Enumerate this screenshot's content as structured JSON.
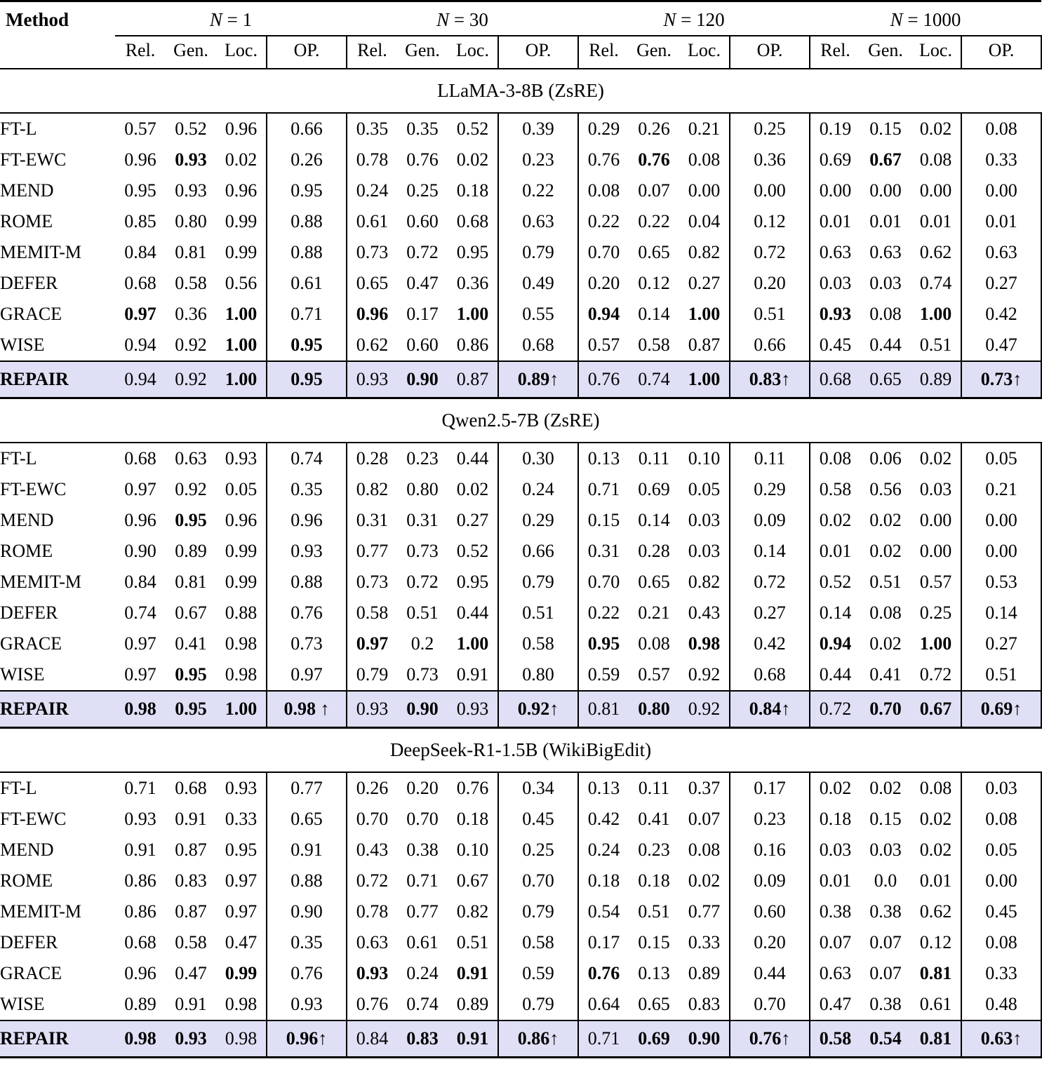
{
  "colors": {
    "background": "#ffffff",
    "text": "#000000",
    "rule": "#000000",
    "repair_row_bg": "#dfdff5"
  },
  "table": {
    "method_header": "Method",
    "groups": [
      {
        "symbol": "N",
        "eq": "=",
        "value": "1"
      },
      {
        "symbol": "N",
        "eq": "=",
        "value": "30"
      },
      {
        "symbol": "N",
        "eq": "=",
        "value": "120"
      },
      {
        "symbol": "N",
        "eq": "=",
        "value": "1000"
      }
    ],
    "metric_headers": [
      "Rel.",
      "Gen.",
      "Loc.",
      "OP."
    ],
    "sections": [
      {
        "title": "LLaMA-3-8B (ZsRE)",
        "rows": [
          {
            "method": "FT-L",
            "values": [
              "0.57",
              "0.52",
              "0.96",
              "0.66",
              "0.35",
              "0.35",
              "0.52",
              "0.39",
              "0.29",
              "0.26",
              "0.21",
              "0.25",
              "0.19",
              "0.15",
              "0.02",
              "0.08"
            ],
            "bold": []
          },
          {
            "method": "FT-EWC",
            "values": [
              "0.96",
              "0.93",
              "0.02",
              "0.26",
              "0.78",
              "0.76",
              "0.02",
              "0.23",
              "0.76",
              "0.76",
              "0.08",
              "0.36",
              "0.69",
              "0.67",
              "0.08",
              "0.33"
            ],
            "bold": [
              1,
              9,
              13
            ]
          },
          {
            "method": "MEND",
            "values": [
              "0.95",
              "0.93",
              "0.96",
              "0.95",
              "0.24",
              "0.25",
              "0.18",
              "0.22",
              "0.08",
              "0.07",
              "0.00",
              "0.00",
              "0.00",
              "0.00",
              "0.00",
              "0.00"
            ],
            "bold": []
          },
          {
            "method": "ROME",
            "values": [
              "0.85",
              "0.80",
              "0.99",
              "0.88",
              "0.61",
              "0.60",
              "0.68",
              "0.63",
              "0.22",
              "0.22",
              "0.04",
              "0.12",
              "0.01",
              "0.01",
              "0.01",
              "0.01"
            ],
            "bold": []
          },
          {
            "method": "MEMIT-M",
            "values": [
              "0.84",
              "0.81",
              "0.99",
              "0.88",
              "0.73",
              "0.72",
              "0.95",
              "0.79",
              "0.70",
              "0.65",
              "0.82",
              "0.72",
              "0.63",
              "0.63",
              "0.62",
              "0.63"
            ],
            "bold": []
          },
          {
            "method": "DEFER",
            "values": [
              "0.68",
              "0.58",
              "0.56",
              "0.61",
              "0.65",
              "0.47",
              "0.36",
              "0.49",
              "0.20",
              "0.12",
              "0.27",
              "0.20",
              "0.03",
              "0.03",
              "0.74",
              "0.27"
            ],
            "bold": []
          },
          {
            "method": "GRACE",
            "values": [
              "0.97",
              "0.36",
              "1.00",
              "0.71",
              "0.96",
              "0.17",
              "1.00",
              "0.55",
              "0.94",
              "0.14",
              "1.00",
              "0.51",
              "0.93",
              "0.08",
              "1.00",
              "0.42"
            ],
            "bold": [
              0,
              2,
              4,
              6,
              8,
              10,
              12,
              14
            ]
          },
          {
            "method": "WISE",
            "values": [
              "0.94",
              "0.92",
              "1.00",
              "0.95",
              "0.62",
              "0.60",
              "0.86",
              "0.68",
              "0.57",
              "0.58",
              "0.87",
              "0.66",
              "0.45",
              "0.44",
              "0.51",
              "0.47"
            ],
            "bold": [
              2,
              3
            ]
          }
        ],
        "repair_row": {
          "method": "REPAIR",
          "values": [
            "0.94",
            "0.92",
            "1.00",
            "0.95",
            "0.93",
            "0.90",
            "0.87",
            "0.89↑",
            "0.76",
            "0.74",
            "1.00",
            "0.83↑",
            "0.68",
            "0.65",
            "0.89",
            "0.73↑"
          ],
          "bold": [
            2,
            3,
            5,
            7,
            10,
            11,
            15
          ]
        }
      },
      {
        "title": "Qwen2.5-7B (ZsRE)",
        "rows": [
          {
            "method": "FT-L",
            "values": [
              "0.68",
              "0.63",
              "0.93",
              "0.74",
              "0.28",
              "0.23",
              "0.44",
              "0.30",
              "0.13",
              "0.11",
              "0.10",
              "0.11",
              "0.08",
              "0.06",
              "0.02",
              "0.05"
            ],
            "bold": []
          },
          {
            "method": "FT-EWC",
            "values": [
              "0.97",
              "0.92",
              "0.05",
              "0.35",
              "0.82",
              "0.80",
              "0.02",
              "0.24",
              "0.71",
              "0.69",
              "0.05",
              "0.29",
              "0.58",
              "0.56",
              "0.03",
              "0.21"
            ],
            "bold": []
          },
          {
            "method": "MEND",
            "values": [
              "0.96",
              "0.95",
              "0.96",
              "0.96",
              "0.31",
              "0.31",
              "0.27",
              "0.29",
              "0.15",
              "0.14",
              "0.03",
              "0.09",
              "0.02",
              "0.02",
              "0.00",
              "0.00"
            ],
            "bold": [
              1
            ]
          },
          {
            "method": "ROME",
            "values": [
              "0.90",
              "0.89",
              "0.99",
              "0.93",
              "0.77",
              "0.73",
              "0.52",
              "0.66",
              "0.31",
              "0.28",
              "0.03",
              "0.14",
              "0.01",
              "0.02",
              "0.00",
              "0.00"
            ],
            "bold": []
          },
          {
            "method": "MEMIT-M",
            "values": [
              "0.84",
              "0.81",
              "0.99",
              "0.88",
              "0.73",
              "0.72",
              "0.95",
              "0.79",
              "0.70",
              "0.65",
              "0.82",
              "0.72",
              "0.52",
              "0.51",
              "0.57",
              "0.53"
            ],
            "bold": []
          },
          {
            "method": "DEFER",
            "values": [
              "0.74",
              "0.67",
              "0.88",
              "0.76",
              "0.58",
              "0.51",
              "0.44",
              "0.51",
              "0.22",
              "0.21",
              "0.43",
              "0.27",
              "0.14",
              "0.08",
              "0.25",
              "0.14"
            ],
            "bold": []
          },
          {
            "method": "GRACE",
            "values": [
              "0.97",
              "0.41",
              "0.98",
              "0.73",
              "0.97",
              "0.2",
              "1.00",
              "0.58",
              "0.95",
              "0.08",
              "0.98",
              "0.42",
              "0.94",
              "0.02",
              "1.00",
              "0.27"
            ],
            "bold": [
              4,
              6,
              8,
              10,
              12,
              14
            ]
          },
          {
            "method": "WISE",
            "values": [
              "0.97",
              "0.95",
              "0.98",
              "0.97",
              "0.79",
              "0.73",
              "0.91",
              "0.80",
              "0.59",
              "0.57",
              "0.92",
              "0.68",
              "0.44",
              "0.41",
              "0.72",
              "0.51"
            ],
            "bold": [
              1
            ]
          }
        ],
        "repair_row": {
          "method": "REPAIR",
          "values": [
            "0.98",
            "0.95",
            "1.00",
            "0.98 ↑",
            "0.93",
            "0.90",
            "0.93",
            "0.92↑",
            "0.81",
            "0.80",
            "0.92",
            "0.84↑",
            "0.72",
            "0.70",
            "0.67",
            "0.69↑"
          ],
          "bold": [
            0,
            1,
            2,
            3,
            5,
            7,
            9,
            11,
            13,
            14,
            15
          ]
        }
      },
      {
        "title": "DeepSeek-R1-1.5B (WikiBigEdit)",
        "rows": [
          {
            "method": "FT-L",
            "values": [
              "0.71",
              "0.68",
              "0.93",
              "0.77",
              "0.26",
              "0.20",
              "0.76",
              "0.34",
              "0.13",
              "0.11",
              "0.37",
              "0.17",
              "0.02",
              "0.02",
              "0.08",
              "0.03"
            ],
            "bold": []
          },
          {
            "method": "FT-EWC",
            "values": [
              "0.93",
              "0.91",
              "0.33",
              "0.65",
              "0.70",
              "0.70",
              "0.18",
              "0.45",
              "0.42",
              "0.41",
              "0.07",
              "0.23",
              "0.18",
              "0.15",
              "0.02",
              "0.08"
            ],
            "bold": []
          },
          {
            "method": "MEND",
            "values": [
              "0.91",
              "0.87",
              "0.95",
              "0.91",
              "0.43",
              "0.38",
              "0.10",
              "0.25",
              "0.24",
              "0.23",
              "0.08",
              "0.16",
              "0.03",
              "0.03",
              "0.02",
              "0.05"
            ],
            "bold": []
          },
          {
            "method": "ROME",
            "values": [
              "0.86",
              "0.83",
              "0.97",
              "0.88",
              "0.72",
              "0.71",
              "0.67",
              "0.70",
              "0.18",
              "0.18",
              "0.02",
              "0.09",
              "0.01",
              "0.0",
              "0.01",
              "0.00"
            ],
            "bold": []
          },
          {
            "method": "MEMIT-M",
            "values": [
              "0.86",
              "0.87",
              "0.97",
              "0.90",
              "0.78",
              "0.77",
              "0.82",
              "0.79",
              "0.54",
              "0.51",
              "0.77",
              "0.60",
              "0.38",
              "0.38",
              "0.62",
              "0.45"
            ],
            "bold": []
          },
          {
            "method": "DEFER",
            "values": [
              "0.68",
              "0.58",
              "0.47",
              "0.35",
              "0.63",
              "0.61",
              "0.51",
              "0.58",
              "0.17",
              "0.15",
              "0.33",
              "0.20",
              "0.07",
              "0.07",
              "0.12",
              "0.08"
            ],
            "bold": []
          },
          {
            "method": "GRACE",
            "values": [
              "0.96",
              "0.47",
              "0.99",
              "0.76",
              "0.93",
              "0.24",
              "0.91",
              "0.59",
              "0.76",
              "0.13",
              "0.89",
              "0.44",
              "0.63",
              "0.07",
              "0.81",
              "0.33"
            ],
            "bold": [
              2,
              4,
              6,
              8,
              14
            ]
          },
          {
            "method": "WISE",
            "values": [
              "0.89",
              "0.91",
              "0.98",
              "0.93",
              "0.76",
              "0.74",
              "0.89",
              "0.79",
              "0.64",
              "0.65",
              "0.83",
              "0.70",
              "0.47",
              "0.38",
              "0.61",
              "0.48"
            ],
            "bold": []
          }
        ],
        "repair_row": {
          "method": "REPAIR",
          "values": [
            "0.98",
            "0.93",
            "0.98",
            "0.96↑",
            "0.84",
            "0.83",
            "0.91",
            "0.86↑",
            "0.71",
            "0.69",
            "0.90",
            "0.76↑",
            "0.58",
            "0.54",
            "0.81",
            "0.63↑"
          ],
          "bold": [
            0,
            1,
            3,
            5,
            6,
            7,
            9,
            10,
            11,
            12,
            13,
            14,
            15
          ]
        }
      }
    ]
  }
}
